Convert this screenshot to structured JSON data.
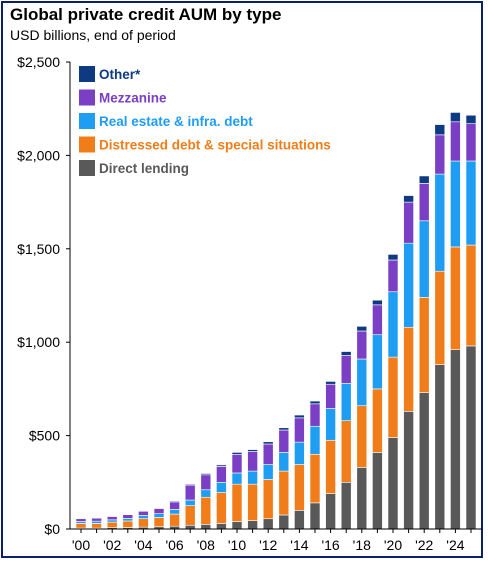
{
  "header": {
    "title": "Global private credit AUM by type",
    "subtitle": "USD billions, end of period"
  },
  "chart_data": {
    "type": "bar",
    "stacked": true,
    "title": "Global private credit AUM by type",
    "subtitle": "USD billions, end of period",
    "xlabel": "",
    "ylabel": "",
    "ylim": [
      0,
      2500
    ],
    "y_ticks": [
      "$0",
      "$500",
      "$1,000",
      "$1,500",
      "$2,000",
      "$2,500"
    ],
    "y_tick_values": [
      0,
      500,
      1000,
      1500,
      2000,
      2500
    ],
    "x_tick_labels": [
      "'00",
      "'02",
      "'04",
      "'06",
      "'08",
      "'10",
      "'12",
      "'14",
      "'16",
      "'18",
      "'20",
      "'22",
      "'24"
    ],
    "categories": [
      "2000",
      "2001",
      "2002",
      "2003",
      "2004",
      "2005",
      "2006",
      "2007",
      "2008",
      "2009",
      "2010",
      "2011",
      "2012",
      "2013",
      "2014",
      "2015",
      "2016",
      "2017",
      "2018",
      "2019",
      "2020",
      "2021",
      "2022",
      "2023",
      "2024",
      "2025"
    ],
    "grid": false,
    "legend_position": "top-left",
    "series": [
      {
        "name": "Direct lending",
        "color": "#595959",
        "values": [
          5,
          5,
          7,
          8,
          10,
          12,
          15,
          20,
          25,
          30,
          40,
          45,
          55,
          75,
          100,
          140,
          190,
          250,
          330,
          410,
          490,
          630,
          730,
          880,
          960,
          980
        ]
      },
      {
        "name": "Distressed debt & special situations",
        "color": "#f07d1a",
        "values": [
          25,
          25,
          30,
          35,
          45,
          50,
          65,
          105,
          145,
          165,
          200,
          195,
          210,
          235,
          245,
          260,
          285,
          330,
          330,
          340,
          430,
          450,
          510,
          500,
          550,
          540
        ]
      },
      {
        "name": "Real estate & infra. debt",
        "color": "#1e9df2",
        "values": [
          10,
          12,
          12,
          14,
          18,
          20,
          25,
          30,
          40,
          55,
          60,
          70,
          80,
          100,
          120,
          150,
          170,
          200,
          250,
          290,
          350,
          450,
          410,
          520,
          460,
          450
        ]
      },
      {
        "name": "Mezzanine",
        "color": "#7a3fc4",
        "values": [
          15,
          16,
          18,
          20,
          22,
          28,
          40,
          80,
          80,
          85,
          100,
          105,
          110,
          120,
          130,
          120,
          130,
          150,
          150,
          160,
          170,
          220,
          200,
          210,
          210,
          200
        ]
      },
      {
        "name": "Other*",
        "color": "#0d3a80",
        "values": [
          2,
          2,
          2,
          2,
          2,
          3,
          5,
          5,
          7,
          8,
          10,
          10,
          12,
          12,
          15,
          15,
          15,
          20,
          25,
          25,
          30,
          35,
          40,
          55,
          50,
          45
        ]
      }
    ]
  }
}
